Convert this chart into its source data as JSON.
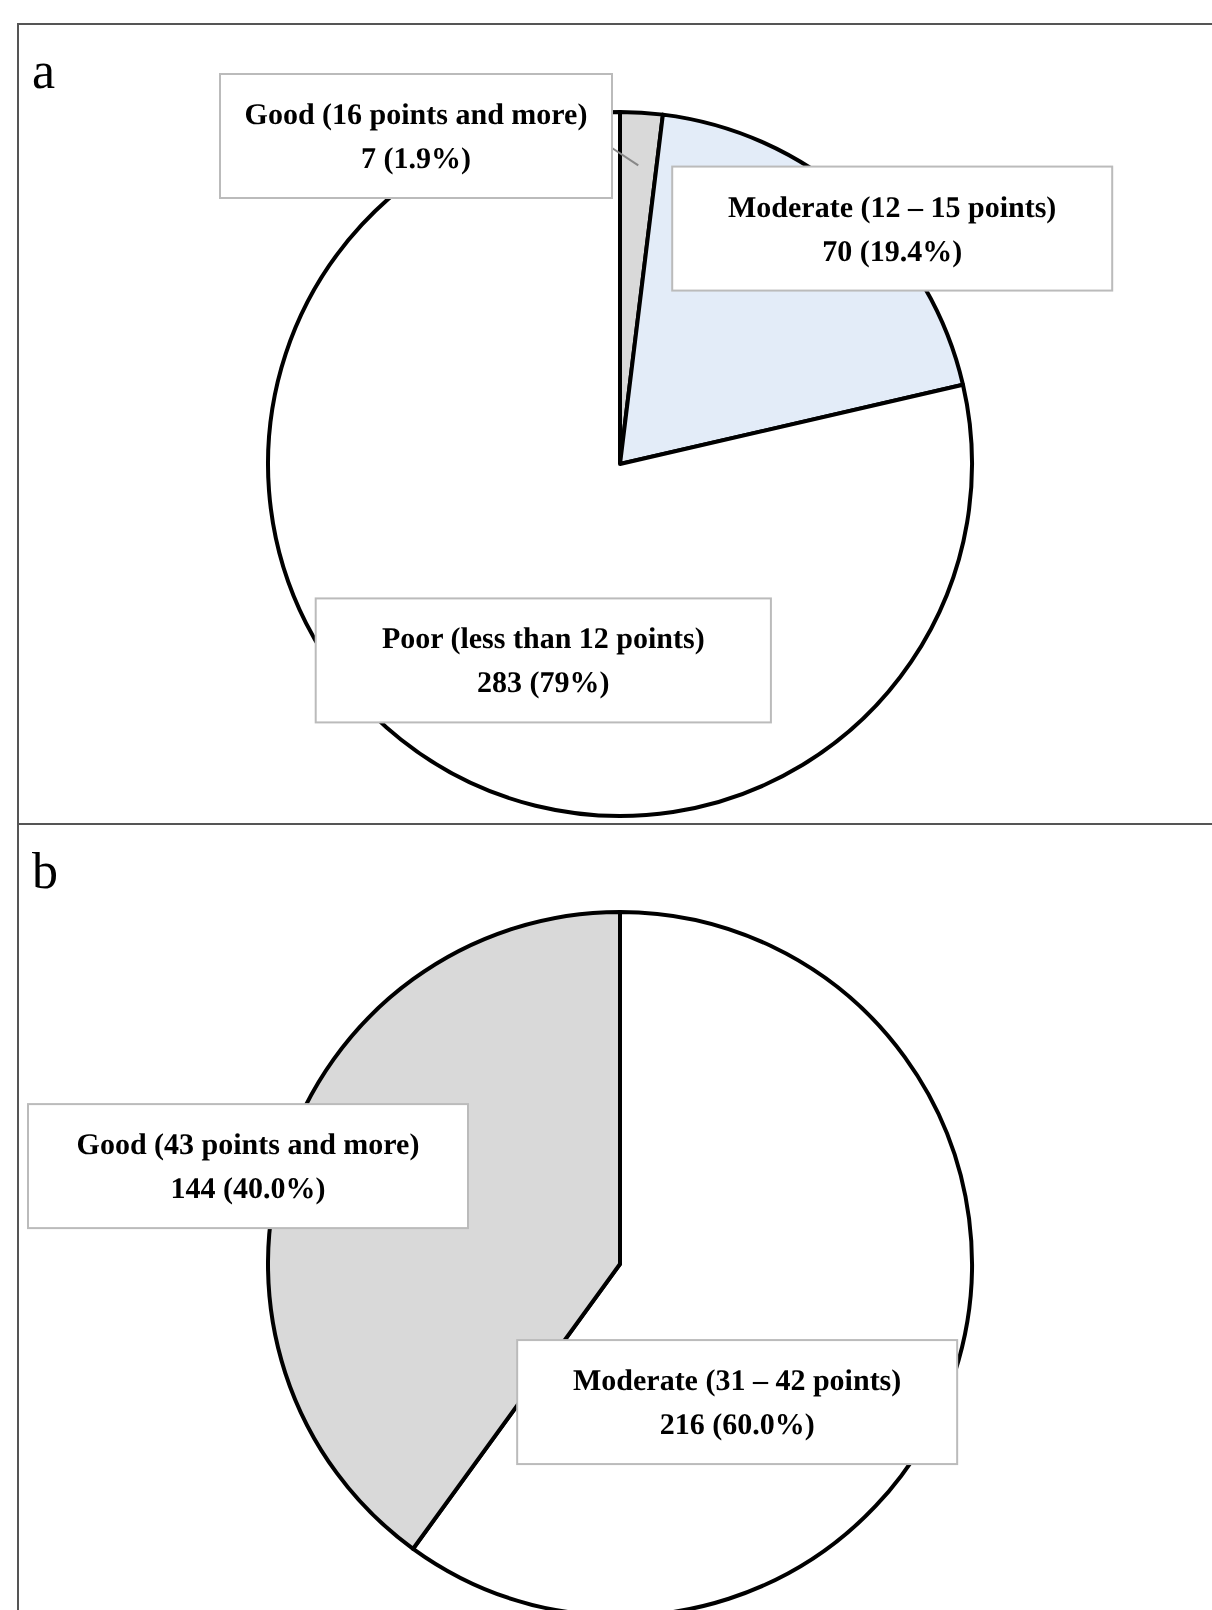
{
  "chart_data": [
    {
      "type": "pie",
      "title": "a",
      "categories": [
        "Good (16 points and more)",
        "Moderate (12 – 15 points)",
        "Poor (less than 12 points)"
      ],
      "values": [
        7,
        70,
        283
      ],
      "value_labels": [
        "7 (1.9%)",
        "70 (19.4%)",
        "283 (79%)"
      ],
      "colors": [
        "#d9d9d9",
        "#e3ecf8",
        "#ffffff"
      ]
    },
    {
      "type": "pie",
      "title": "b",
      "categories": [
        "Moderate (31 – 42 points)",
        "Good (43 points and more)"
      ],
      "values": [
        216,
        144
      ],
      "value_labels": [
        "216 (60.0%)",
        "144 (40.0%)"
      ],
      "colors": [
        "#ffffff",
        "#d9d9d9"
      ]
    }
  ]
}
